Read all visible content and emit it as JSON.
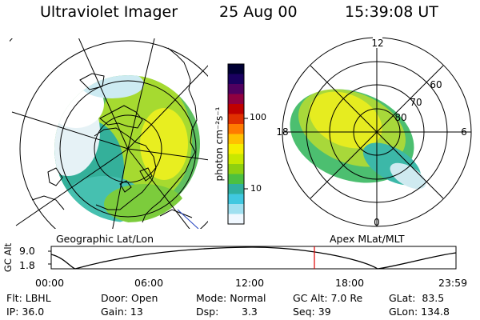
{
  "header": {
    "title": "Ultraviolet Imager",
    "date": "25 Aug 00",
    "time": "15:39:08 UT"
  },
  "colorbar": {
    "unit_label": "photon cm⁻²s⁻¹",
    "ticks": [
      "100",
      "10"
    ],
    "colors": [
      "#000033",
      "#1a0060",
      "#500060",
      "#900040",
      "#c00000",
      "#e03000",
      "#ff7a00",
      "#ffc000",
      "#f5ee00",
      "#c8e800",
      "#8ed010",
      "#4cc040",
      "#30b0a0",
      "#40c8e0",
      "#a0e0f0",
      "#f0f8ff"
    ]
  },
  "left_panel": {
    "caption": "Geographic Lat/Lon"
  },
  "right_panel": {
    "caption": "Apex MLat/MLT",
    "mlt_labels": {
      "top": "12",
      "bottom": "0",
      "left": "18",
      "right": "6"
    },
    "lat_labels": [
      "60",
      "70",
      "80"
    ]
  },
  "altitude_plot": {
    "axis_label": "GC Alt",
    "y_ticks": [
      "9.0",
      "1.8"
    ],
    "x_ticks": [
      "00:00",
      "06:00",
      "12:00",
      "18:00",
      "23:59"
    ],
    "current_time_marker": "15:39"
  },
  "info": {
    "flt": "Flt: LBHL",
    "ip": "IP: 36.0",
    "door": "Door: Open",
    "gain": "Gain: 13",
    "mode": "Mode: Normal",
    "dsp_label": "Dsp:",
    "dsp_value": "3.3",
    "gcalt": "GC Alt: 7.0 Re",
    "seq": "Seq: 39",
    "glat": "GLat:  83.5",
    "glon": "GLon: 134.8"
  }
}
